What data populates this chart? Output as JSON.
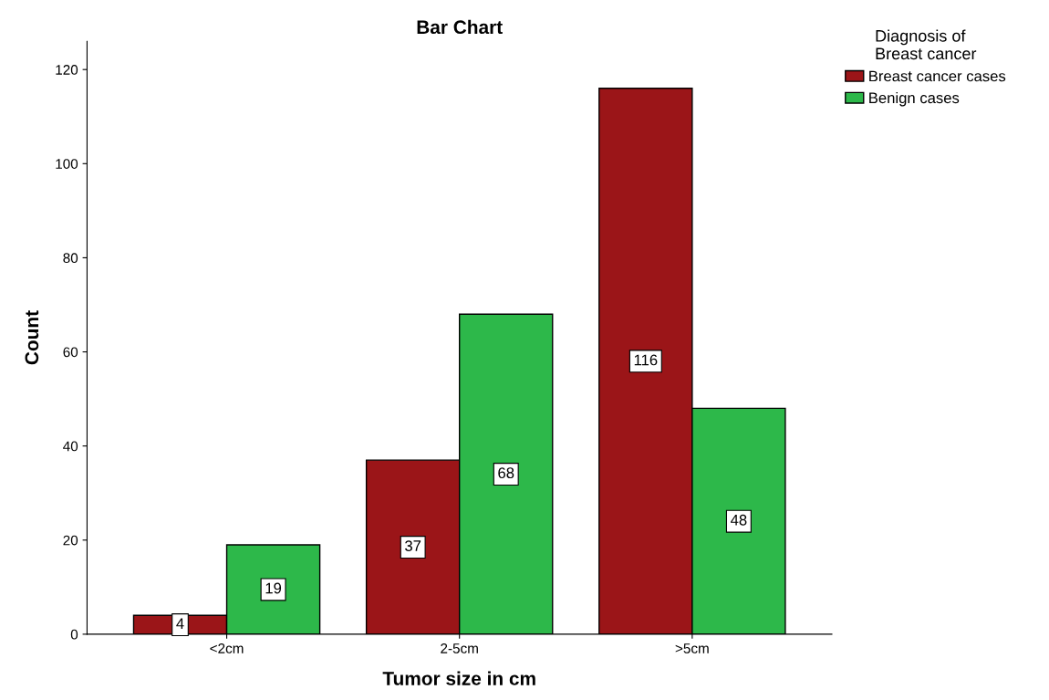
{
  "chart_data": {
    "type": "bar",
    "title": "Bar Chart",
    "xlabel": "Tumor size in cm",
    "ylabel": "Count",
    "legend_title": "Diagnosis of\nBreast cancer",
    "categories": [
      "<2cm",
      "2-5cm",
      ">5cm"
    ],
    "series": [
      {
        "name": "Breast cancer cases",
        "color": "#9b1518",
        "values": [
          4,
          37,
          116
        ]
      },
      {
        "name": "Benign cases",
        "color": "#2db84a",
        "values": [
          19,
          68,
          48
        ]
      }
    ],
    "ylim": [
      0,
      126
    ],
    "yticks": [
      0,
      20,
      40,
      60,
      80,
      100,
      120
    ],
    "grid": false,
    "legend": "top right",
    "data_labels": true
  }
}
